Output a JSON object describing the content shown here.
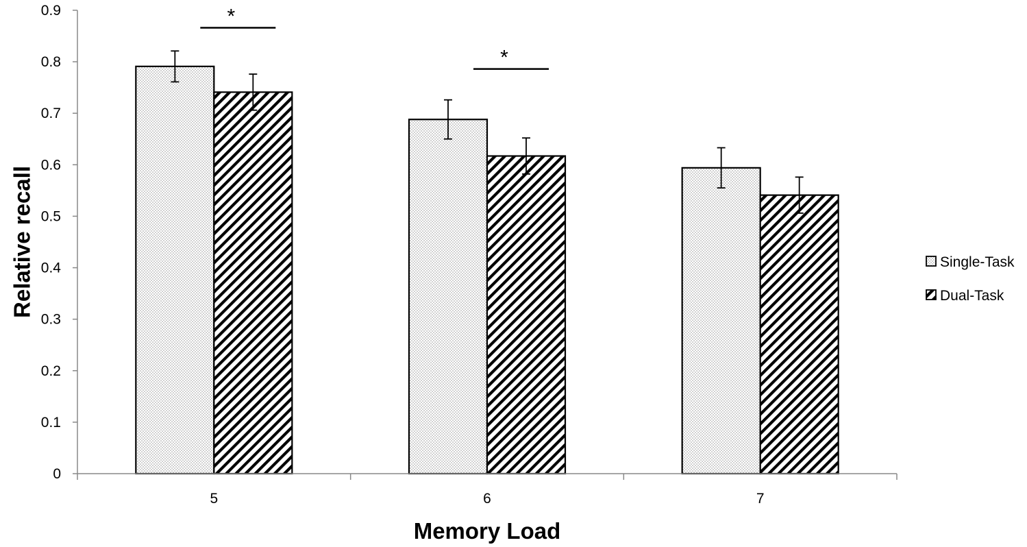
{
  "chart_data": {
    "type": "bar",
    "title": "",
    "xlabel": "Memory Load",
    "ylabel": "Relative recall",
    "categories": [
      "5",
      "6",
      "7"
    ],
    "series": [
      {
        "name": "Single-Task",
        "pattern": "dots",
        "values": [
          0.791,
          0.688,
          0.594
        ],
        "errors": [
          0.03,
          0.038,
          0.039
        ]
      },
      {
        "name": "Dual-Task",
        "pattern": "diagonal-hatch",
        "values": [
          0.741,
          0.617,
          0.541
        ],
        "errors": [
          0.035,
          0.035,
          0.035
        ]
      }
    ],
    "ylim": [
      0,
      0.9
    ],
    "yticks": [
      "0",
      "0.1",
      "0.2",
      "0.3",
      "0.4",
      "0.5",
      "0.6",
      "0.7",
      "0.8",
      "0.9"
    ],
    "grid": false,
    "legend_position": "right",
    "significance": [
      {
        "category": "5",
        "label": "*",
        "y": 0.866
      },
      {
        "category": "6",
        "label": "*",
        "y": 0.786
      }
    ],
    "colors": {
      "bar_stroke": "#000000",
      "background": "#ffffff",
      "axis": "#888888"
    }
  }
}
